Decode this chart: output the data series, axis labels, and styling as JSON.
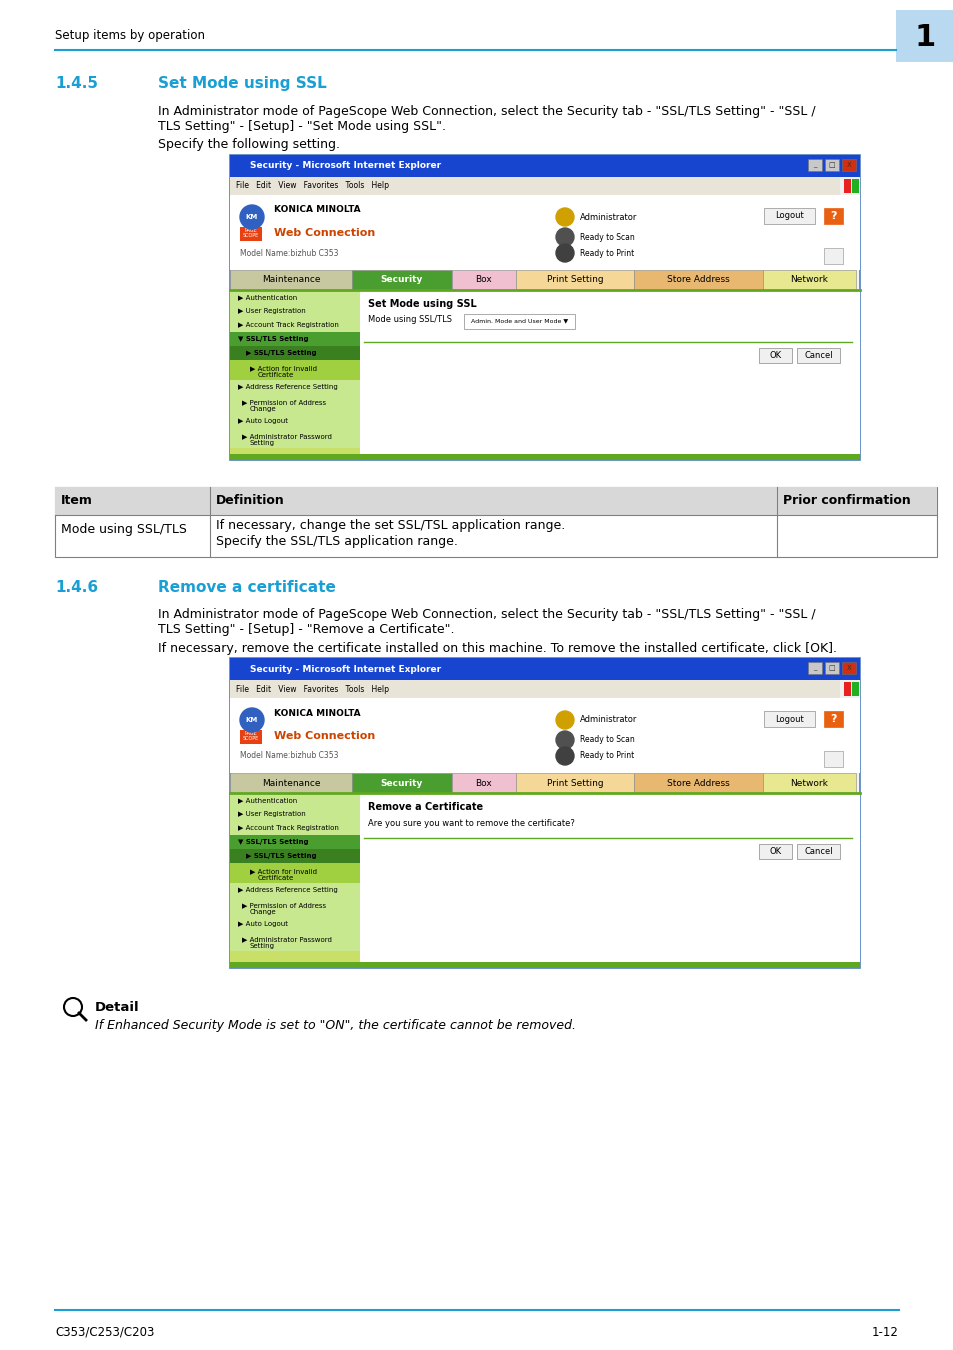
{
  "page_bg": "#ffffff",
  "header_text": "Setup items by operation",
  "header_text_color": "#000000",
  "header_line_color": "#1a9fd4",
  "chapter_box_color": "#b8d9f0",
  "chapter_number": "1",
  "section_145_num": "1.4.5",
  "section_145_title": "Set Mode using SSL",
  "section_color": "#1a9fd4",
  "section_145_body1": "In Administrator mode of PageScope Web Connection, select the Security tab - \"SSL/TLS Setting\" - \"SSL /",
  "section_145_body2": "TLS Setting\" - [Setup] - \"Set Mode using SSL\".",
  "section_145_body3": "Specify the following setting.",
  "section_146_num": "1.4.6",
  "section_146_title": "Remove a certificate",
  "section_146_body1": "In Administrator mode of PageScope Web Connection, select the Security tab - \"SSL/TLS Setting\" - \"SSL /",
  "section_146_body2": "TLS Setting\" - [Setup] - \"Remove a Certificate\".",
  "section_146_body3": "If necessary, remove the certificate installed on this machine. To remove the installed certificate, click [OK].",
  "table_header_bg": "#d0d0d0",
  "table_col1_header": "Item",
  "table_col2_header": "Definition",
  "table_col3_header": "Prior confirmation",
  "table_row1_col1": "Mode using SSL/TLS",
  "table_row1_col2a": "If necessary, change the set SSL/TSL application range.",
  "table_row1_col2b": "Specify the SSL/TLS application range.",
  "detail_label": "Detail",
  "detail_text": "If Enhanced Security Mode is set to \"ON\", the certificate cannot be removed.",
  "footer_left": "C353/C253/C203",
  "footer_right": "1-12",
  "footer_line_color": "#1a9fd4",
  "tab_labels": [
    "Maintenance",
    "Security",
    "Box",
    "Print Setting",
    "Store Address",
    "Network"
  ],
  "tab_colors": [
    "#c8c8a0",
    "#4a9e30",
    "#f0c0d0",
    "#f5d898",
    "#e8b870",
    "#e8e890"
  ],
  "sidebar_items": [
    "Authentication",
    "User Registration",
    "Account Track Registration",
    "SSL/TLS Setting",
    "SSL/TLS Setting",
    "Action for Invalid\nCertificate",
    "Address Reference Setting",
    "Permission of Address\nChange",
    "Auto Logout",
    "Administrator Password\nSetting"
  ],
  "sidebar_colors": [
    "#c8e890",
    "#c8e890",
    "#c8e890",
    "#4a9e30",
    "#3a8020",
    "#a0d040",
    "#c8e890",
    "#c8e890",
    "#c8e890",
    "#c8e890"
  ]
}
